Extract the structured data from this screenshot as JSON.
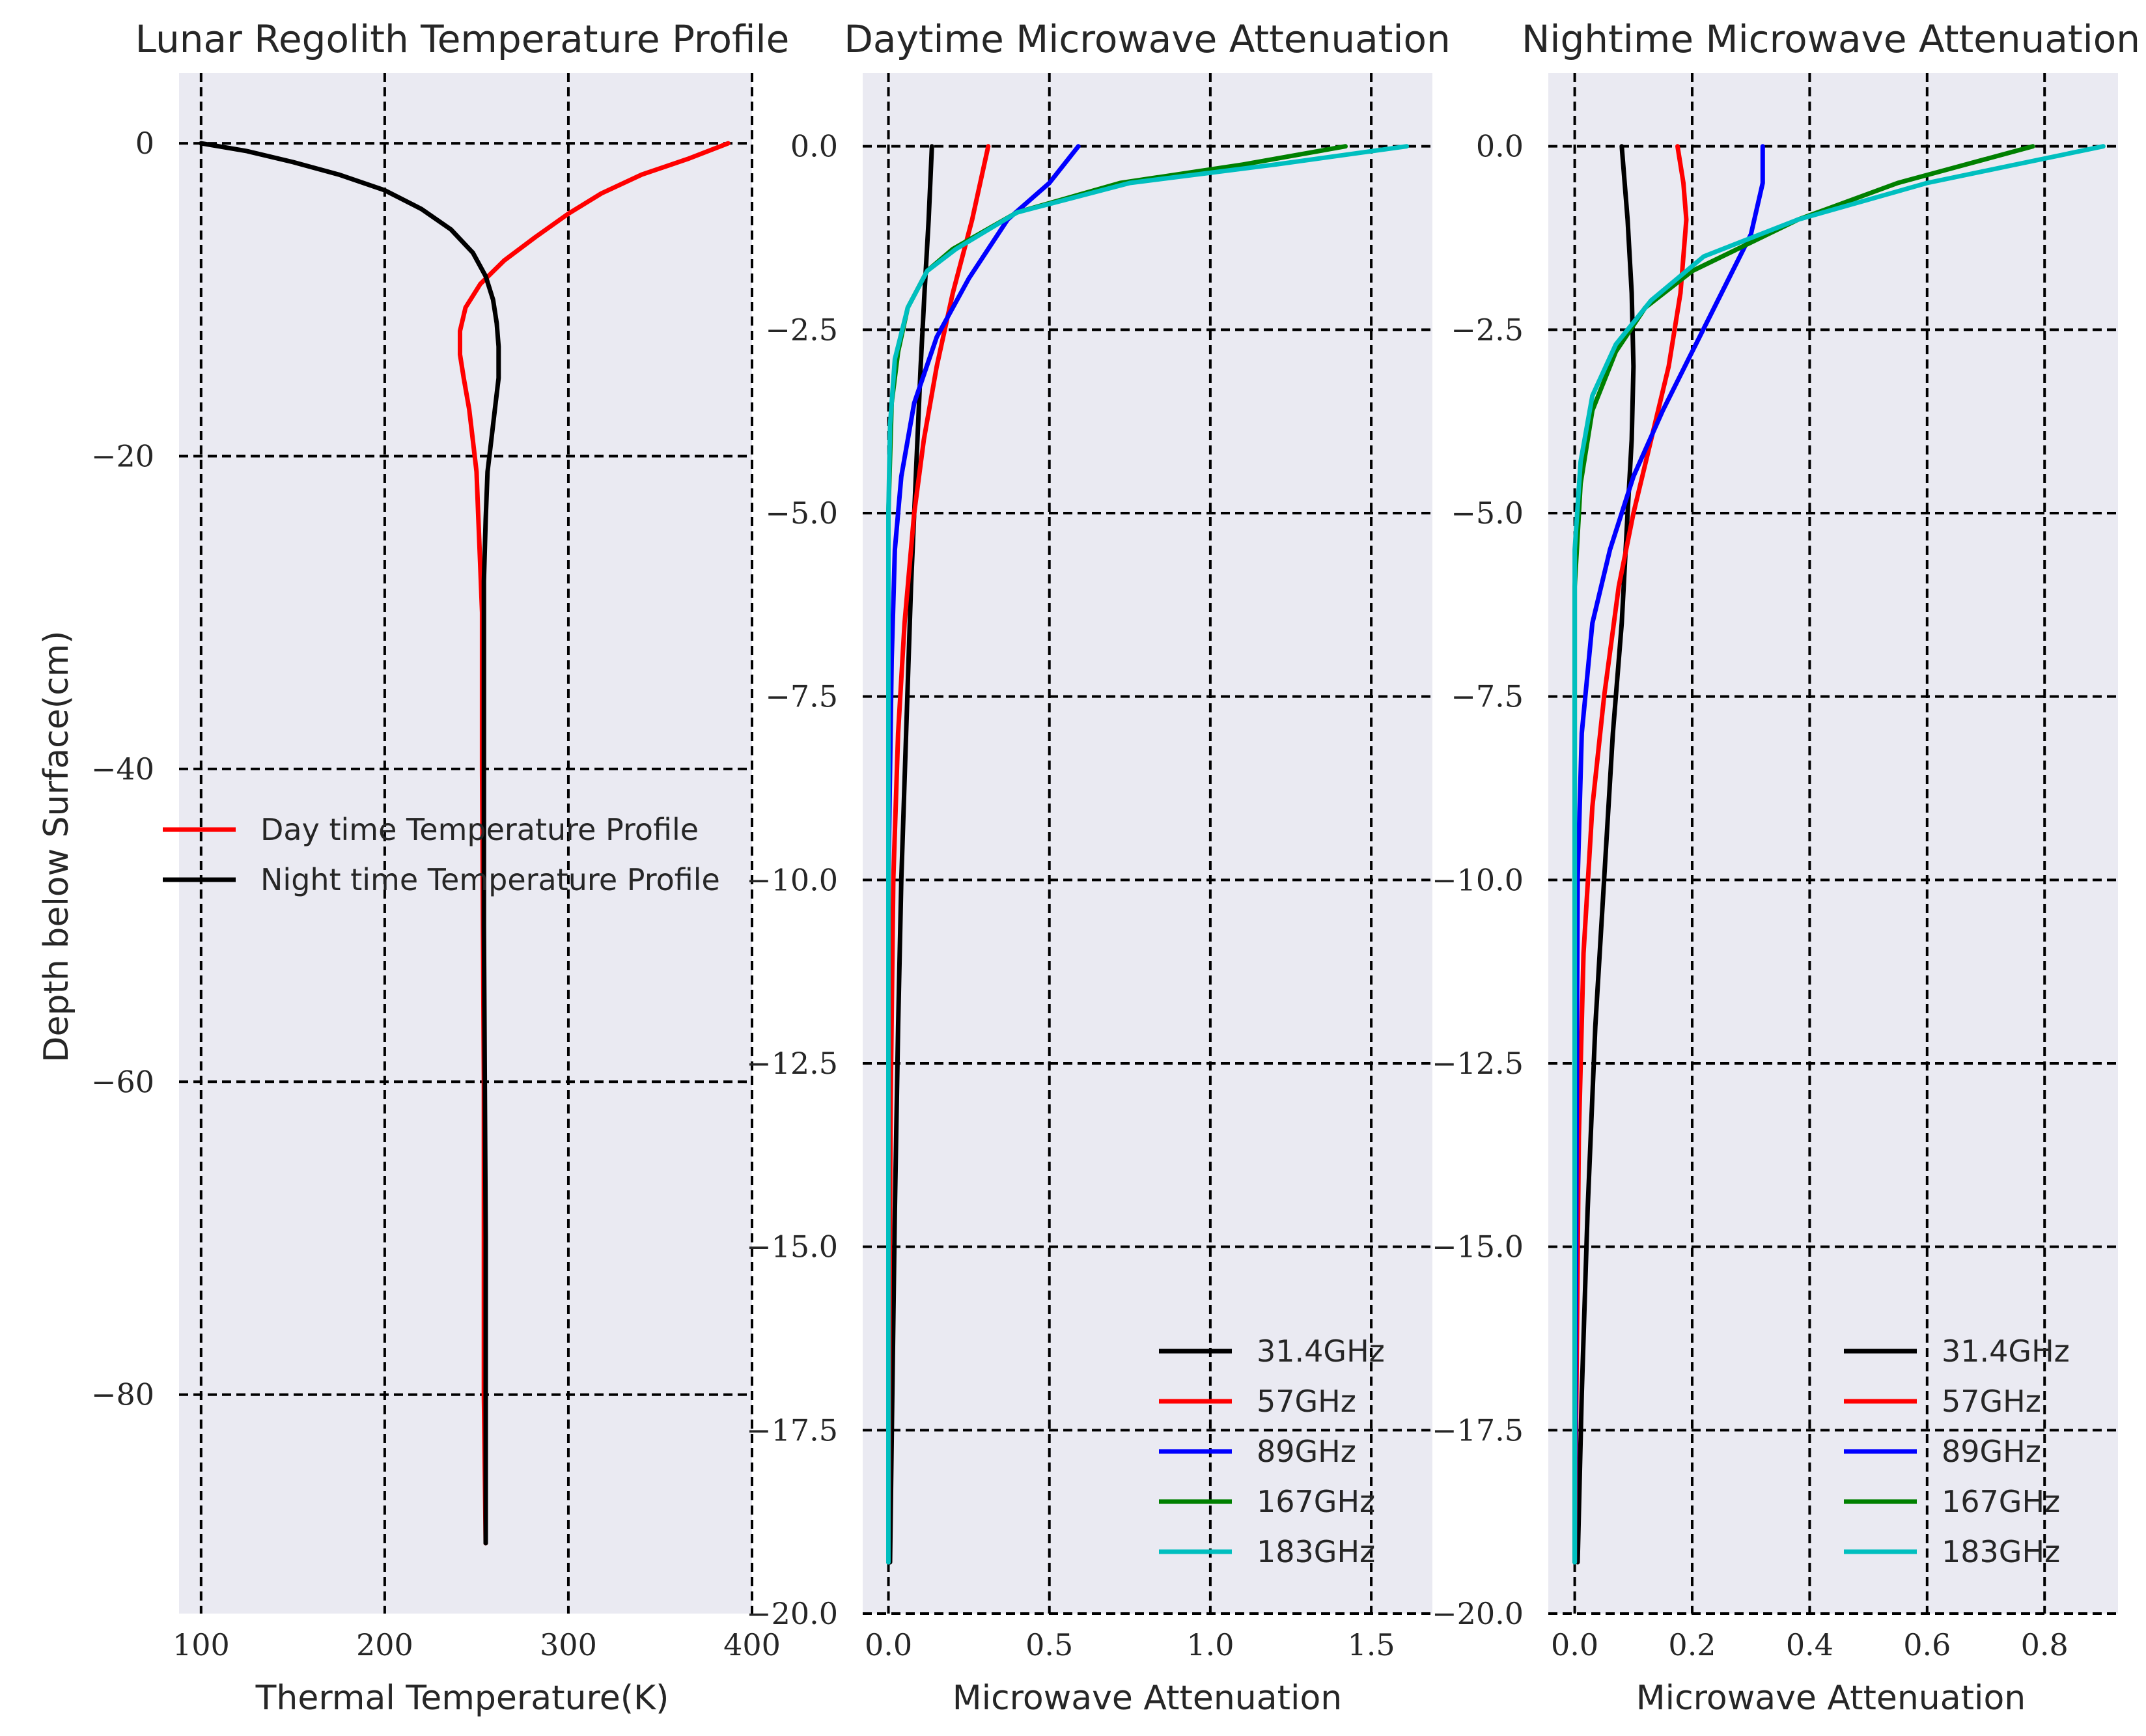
{
  "colors": {
    "background": "#eaeaf2",
    "grid": "#000000"
  },
  "chart_data": [
    {
      "type": "line",
      "title": "Lunar Regolith Temperature Profile",
      "xlabel": "Thermal Temperature(K)",
      "ylabel": "Depth below Surface(cm)",
      "xlim": [
        88,
        400
      ],
      "ylim": [
        -94,
        4.5
      ],
      "xticks": [
        100,
        200,
        300,
        400
      ],
      "xtick_labels": [
        "100",
        "200",
        "300",
        "400"
      ],
      "yticks": [
        0,
        -20,
        -40,
        -60,
        -80
      ],
      "ytick_labels": [
        "0",
        "−20",
        "−40",
        "−60",
        "−80"
      ],
      "grid": true,
      "legend": "center-left",
      "series": [
        {
          "name": "Day time Temperature Profile",
          "color": "#ff0000",
          "points": [
            [
              387,
              0
            ],
            [
              365,
              -1
            ],
            [
              340,
              -2
            ],
            [
              318,
              -3.2
            ],
            [
              300,
              -4.5
            ],
            [
              282,
              -6
            ],
            [
              265,
              -7.5
            ],
            [
              252,
              -9
            ],
            [
              244,
              -10.5
            ],
            [
              241,
              -12
            ],
            [
              241,
              -13.5
            ],
            [
              243,
              -15
            ],
            [
              246,
              -17
            ],
            [
              248,
              -19
            ],
            [
              250,
              -21
            ],
            [
              251,
              -24
            ],
            [
              252,
              -27
            ],
            [
              253,
              -30
            ],
            [
              253,
              -40
            ],
            [
              254,
              -60
            ],
            [
              254,
              -80
            ],
            [
              255,
              -89.5
            ]
          ]
        },
        {
          "name": "Night time Temperature Profile",
          "color": "#000000",
          "points": [
            [
              100,
              0
            ],
            [
              125,
              -0.5
            ],
            [
              150,
              -1.2
            ],
            [
              175,
              -2
            ],
            [
              200,
              -3
            ],
            [
              220,
              -4.2
            ],
            [
              236,
              -5.5
            ],
            [
              248,
              -7
            ],
            [
              255,
              -8.5
            ],
            [
              259,
              -10
            ],
            [
              261,
              -11.5
            ],
            [
              262,
              -13
            ],
            [
              262,
              -15
            ],
            [
              260,
              -17
            ],
            [
              258,
              -19
            ],
            [
              256,
              -21
            ],
            [
              255,
              -24
            ],
            [
              254,
              -28
            ],
            [
              254,
              -35
            ],
            [
              254,
              -50
            ],
            [
              255,
              -70
            ],
            [
              255,
              -89.5
            ]
          ]
        }
      ]
    },
    {
      "type": "line",
      "title": "Daytime Microwave Attenuation",
      "xlabel": "Microwave Attenuation",
      "ylabel": "",
      "xlim": [
        -0.08,
        1.69
      ],
      "ylim": [
        -20,
        1
      ],
      "xticks": [
        0,
        0.5,
        1.0,
        1.5
      ],
      "xtick_labels": [
        "0.0",
        "0.5",
        "1.0",
        "1.5"
      ],
      "yticks": [
        0,
        -2.5,
        -5,
        -7.5,
        -10,
        -12.5,
        -15,
        -17.5,
        -20
      ],
      "ytick_labels": [
        "0.0",
        "−2.5",
        "−5.0",
        "−7.5",
        "−10.0",
        "−12.5",
        "−15.0",
        "−17.5",
        "−20.0"
      ],
      "grid": true,
      "legend": "lower-right",
      "series": [
        {
          "name": "31.4GHz",
          "color": "#000000",
          "points": [
            [
              0.135,
              0
            ],
            [
              0.125,
              -1
            ],
            [
              0.112,
              -2
            ],
            [
              0.1,
              -3
            ],
            [
              0.085,
              -4.5
            ],
            [
              0.07,
              -6
            ],
            [
              0.055,
              -8
            ],
            [
              0.04,
              -10
            ],
            [
              0.03,
              -12
            ],
            [
              0.02,
              -14.5
            ],
            [
              0.012,
              -17
            ],
            [
              0.005,
              -19.3
            ]
          ]
        },
        {
          "name": "57GHz",
          "color": "#ff0000",
          "points": [
            [
              0.31,
              0
            ],
            [
              0.26,
              -1
            ],
            [
              0.2,
              -2
            ],
            [
              0.15,
              -3
            ],
            [
              0.11,
              -4
            ],
            [
              0.08,
              -5
            ],
            [
              0.05,
              -6.5
            ],
            [
              0.03,
              -8
            ],
            [
              0.015,
              -10
            ],
            [
              0.007,
              -13
            ],
            [
              0.003,
              -16
            ],
            [
              0,
              -19.3
            ]
          ]
        },
        {
          "name": "89GHz",
          "color": "#0000ff",
          "points": [
            [
              0.59,
              0
            ],
            [
              0.5,
              -0.5
            ],
            [
              0.37,
              -1
            ],
            [
              0.25,
              -1.8
            ],
            [
              0.15,
              -2.6
            ],
            [
              0.08,
              -3.5
            ],
            [
              0.04,
              -4.5
            ],
            [
              0.02,
              -5.5
            ],
            [
              0.01,
              -7
            ],
            [
              0,
              -10
            ],
            [
              0,
              -19.3
            ]
          ]
        },
        {
          "name": "167GHz",
          "color": "#008000",
          "points": [
            [
              1.42,
              0
            ],
            [
              1.1,
              -0.25
            ],
            [
              0.72,
              -0.5
            ],
            [
              0.4,
              -0.9
            ],
            [
              0.2,
              -1.4
            ],
            [
              0.12,
              -1.7
            ],
            [
              0.06,
              -2.2
            ],
            [
              0.03,
              -2.8
            ],
            [
              0.01,
              -3.5
            ],
            [
              0,
              -5
            ],
            [
              0,
              -19.3
            ]
          ]
        },
        {
          "name": "183GHz",
          "color": "#00bfbf",
          "points": [
            [
              1.61,
              0
            ],
            [
              1.2,
              -0.25
            ],
            [
              0.75,
              -0.5
            ],
            [
              0.4,
              -0.9
            ],
            [
              0.21,
              -1.4
            ],
            [
              0.12,
              -1.7
            ],
            [
              0.06,
              -2.2
            ],
            [
              0.02,
              -2.9
            ],
            [
              0.005,
              -3.8
            ],
            [
              0,
              -5
            ],
            [
              0,
              -19.3
            ]
          ]
        }
      ]
    },
    {
      "type": "line",
      "title": "Nightime Microwave Attenuation",
      "xlabel": "Microwave Attenuation",
      "ylabel": "",
      "xlim": [
        -0.045,
        0.925
      ],
      "ylim": [
        -20,
        1
      ],
      "xticks": [
        0,
        0.2,
        0.4,
        0.6,
        0.8
      ],
      "xtick_labels": [
        "0.0",
        "0.2",
        "0.4",
        "0.6",
        "0.8"
      ],
      "yticks": [
        0,
        -2.5,
        -5,
        -7.5,
        -10,
        -12.5,
        -15,
        -17.5,
        -20
      ],
      "ytick_labels": [
        "0.0",
        "−2.5",
        "−5.0",
        "−7.5",
        "−10.0",
        "−12.5",
        "−15.0",
        "−17.5",
        "−20.0"
      ],
      "grid": true,
      "legend": "lower-right",
      "series": [
        {
          "name": "31.4GHz",
          "color": "#000000",
          "points": [
            [
              0.08,
              0
            ],
            [
              0.09,
              -1
            ],
            [
              0.097,
              -2
            ],
            [
              0.1,
              -3
            ],
            [
              0.097,
              -4
            ],
            [
              0.09,
              -5
            ],
            [
              0.08,
              -6.5
            ],
            [
              0.065,
              -8
            ],
            [
              0.05,
              -10
            ],
            [
              0.035,
              -12
            ],
            [
              0.022,
              -14.5
            ],
            [
              0.012,
              -17
            ],
            [
              0.005,
              -19.3
            ]
          ]
        },
        {
          "name": "57GHz",
          "color": "#ff0000",
          "points": [
            [
              0.175,
              0
            ],
            [
              0.185,
              -0.5
            ],
            [
              0.19,
              -1
            ],
            [
              0.18,
              -2
            ],
            [
              0.16,
              -3
            ],
            [
              0.13,
              -4
            ],
            [
              0.1,
              -5
            ],
            [
              0.075,
              -6
            ],
            [
              0.05,
              -7.5
            ],
            [
              0.03,
              -9
            ],
            [
              0.015,
              -11
            ],
            [
              0.007,
              -13.5
            ],
            [
              0,
              -19.3
            ]
          ]
        },
        {
          "name": "89GHz",
          "color": "#0000ff",
          "points": [
            [
              0.32,
              0
            ],
            [
              0.32,
              -0.5
            ],
            [
              0.3,
              -1.2
            ],
            [
              0.25,
              -2
            ],
            [
              0.2,
              -2.8
            ],
            [
              0.15,
              -3.6
            ],
            [
              0.1,
              -4.5
            ],
            [
              0.06,
              -5.5
            ],
            [
              0.03,
              -6.5
            ],
            [
              0.012,
              -8
            ],
            [
              0.005,
              -10
            ],
            [
              0,
              -19.3
            ]
          ]
        },
        {
          "name": "167GHz",
          "color": "#008000",
          "points": [
            [
              0.78,
              0
            ],
            [
              0.55,
              -0.5
            ],
            [
              0.38,
              -1
            ],
            [
              0.2,
              -1.7
            ],
            [
              0.12,
              -2.2
            ],
            [
              0.07,
              -2.8
            ],
            [
              0.03,
              -3.6
            ],
            [
              0.01,
              -4.6
            ],
            [
              0,
              -6
            ],
            [
              0,
              -19.3
            ]
          ]
        },
        {
          "name": "183GHz",
          "color": "#00bfbf",
          "points": [
            [
              0.9,
              0
            ],
            [
              0.6,
              -0.5
            ],
            [
              0.38,
              -1
            ],
            [
              0.22,
              -1.5
            ],
            [
              0.13,
              -2.1
            ],
            [
              0.07,
              -2.7
            ],
            [
              0.03,
              -3.4
            ],
            [
              0.01,
              -4.3
            ],
            [
              0,
              -5.5
            ],
            [
              0,
              -19.3
            ]
          ]
        }
      ]
    }
  ]
}
